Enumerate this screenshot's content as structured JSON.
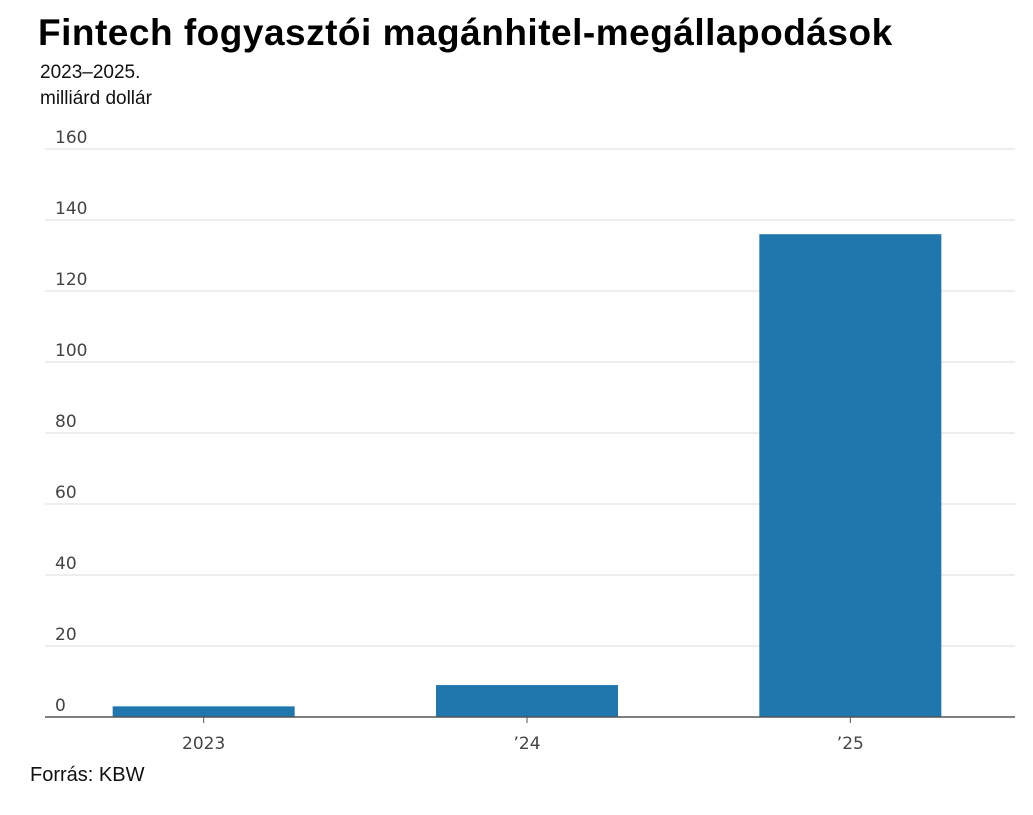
{
  "chart_data": {
    "type": "bar",
    "title": "Fintech fogyasztói magánhitel-megállapodások",
    "subtitle_line1": "2023–2025.",
    "subtitle_line2": "milliárd dollár",
    "source": "Forrás: KBW",
    "categories": [
      "2023",
      "’24",
      "’25"
    ],
    "values": [
      3,
      9,
      136
    ],
    "ylim": [
      0,
      160
    ],
    "yticks": [
      0,
      20,
      40,
      60,
      80,
      100,
      120,
      140,
      160
    ],
    "grid": true,
    "bar_color": "#1f77ae",
    "xlabel": "",
    "ylabel": ""
  }
}
